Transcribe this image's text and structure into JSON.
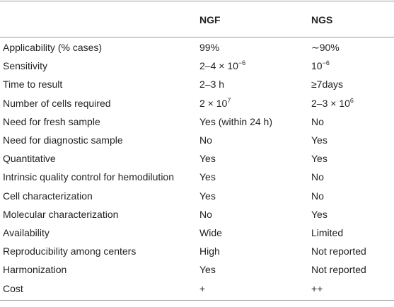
{
  "table": {
    "header": [
      "",
      "NGF",
      "NGS"
    ],
    "rows": [
      [
        "Applicability (% cases)",
        "99%",
        "∼90%"
      ],
      [
        "Sensitivity",
        {
          "text": "2–4 × 10",
          "sup": "−6"
        },
        {
          "text": "10",
          "sup": "−6"
        }
      ],
      [
        "Time to result",
        "2–3 h",
        "≥7days"
      ],
      [
        "Number of cells required",
        {
          "text": "2 × 10",
          "sup": "7"
        },
        {
          "text": "2–3 × 10",
          "sup": "6"
        }
      ],
      [
        "Need for fresh sample",
        "Yes (within 24 h)",
        "No"
      ],
      [
        "Need for diagnostic sample",
        "No",
        "Yes"
      ],
      [
        "Quantitative",
        "Yes",
        "Yes"
      ],
      [
        "Intrinsic quality control for hemodilution",
        "Yes",
        "No"
      ],
      [
        "Cell characterization",
        "Yes",
        "No"
      ],
      [
        "Molecular characterization",
        "No",
        "Yes"
      ],
      [
        "Availability",
        "Wide",
        "Limited"
      ],
      [
        "Reproducibility among centers",
        "High",
        "Not reported"
      ],
      [
        "Harmonization",
        "Yes",
        "Not reported"
      ],
      [
        "Cost",
        "+",
        "++"
      ]
    ]
  }
}
